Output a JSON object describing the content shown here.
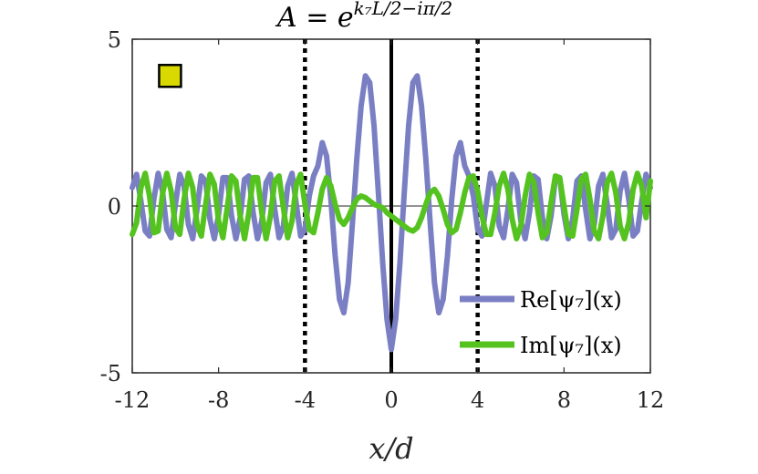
{
  "chart_data": {
    "type": "line",
    "title": {
      "lhs": "A = e",
      "exponent": "k₇L/2−iπ/2"
    },
    "xlabel": "x/d",
    "ylabel": "",
    "xlim": [
      -12,
      12
    ],
    "ylim": [
      -5,
      5
    ],
    "xticks": [
      "-12",
      "-8",
      "-4",
      "0",
      "4",
      "8",
      "12"
    ],
    "yticks": [
      "-5",
      "0",
      "5"
    ],
    "grid": false,
    "legend_position": "bottom-right",
    "vertical_lines": [
      {
        "x": -4,
        "style": "dotted",
        "color": "#000000"
      },
      {
        "x": 0,
        "style": "solid",
        "color": "#000000"
      },
      {
        "x": 4,
        "style": "dotted",
        "color": "#000000"
      }
    ],
    "marker": {
      "x": -10.25,
      "y": 3.9,
      "color": "#d9d900",
      "shape": "square"
    },
    "series": [
      {
        "name": "Re[ψ₇](x)",
        "color": "#7a7fc4",
        "points": [
          [
            -12,
            0.55
          ],
          [
            -11.8,
            0.95
          ],
          [
            -11.6,
            0.15
          ],
          [
            -11.4,
            -0.75
          ],
          [
            -11.2,
            -0.9
          ],
          [
            -11.0,
            0.2
          ],
          [
            -10.8,
            0.98
          ],
          [
            -10.6,
            0.45
          ],
          [
            -10.4,
            -0.7
          ],
          [
            -10.2,
            -0.95
          ],
          [
            -10.0,
            0.05
          ],
          [
            -9.8,
            0.95
          ],
          [
            -9.6,
            0.6
          ],
          [
            -9.4,
            -0.55
          ],
          [
            -9.2,
            -0.98
          ],
          [
            -9.0,
            -0.1
          ],
          [
            -8.8,
            0.9
          ],
          [
            -8.6,
            0.75
          ],
          [
            -8.4,
            -0.4
          ],
          [
            -8.2,
            -0.98
          ],
          [
            -8.0,
            -0.25
          ],
          [
            -7.8,
            0.85
          ],
          [
            -7.6,
            0.85
          ],
          [
            -7.4,
            -0.3
          ],
          [
            -7.2,
            -0.98
          ],
          [
            -7.0,
            -0.35
          ],
          [
            -6.8,
            0.8
          ],
          [
            -6.6,
            0.9
          ],
          [
            -6.4,
            -0.2
          ],
          [
            -6.2,
            -0.98
          ],
          [
            -6.0,
            -0.45
          ],
          [
            -5.8,
            0.7
          ],
          [
            -5.6,
            0.95
          ],
          [
            -5.4,
            -0.1
          ],
          [
            -5.2,
            -0.95
          ],
          [
            -5.0,
            -0.6
          ],
          [
            -4.8,
            0.6
          ],
          [
            -4.6,
            0.98
          ],
          [
            -4.4,
            0.05
          ],
          [
            -4.2,
            -0.9
          ],
          [
            -4.0,
            -0.7
          ],
          [
            -3.8,
            0.3
          ],
          [
            -3.6,
            0.9
          ],
          [
            -3.4,
            1.2
          ],
          [
            -3.2,
            1.9
          ],
          [
            -3.0,
            1.5
          ],
          [
            -2.8,
            0.2
          ],
          [
            -2.6,
            -1.5
          ],
          [
            -2.4,
            -2.8
          ],
          [
            -2.2,
            -3.2
          ],
          [
            -2.0,
            -2.3
          ],
          [
            -1.8,
            -0.5
          ],
          [
            -1.6,
            1.4
          ],
          [
            -1.4,
            3.0
          ],
          [
            -1.2,
            3.9
          ],
          [
            -1.0,
            3.7
          ],
          [
            -0.8,
            2.4
          ],
          [
            -0.6,
            0.4
          ],
          [
            -0.4,
            -1.7
          ],
          [
            -0.2,
            -3.4
          ],
          [
            0.0,
            -4.3
          ],
          [
            0.2,
            -3.4
          ],
          [
            0.4,
            -1.7
          ],
          [
            0.6,
            0.4
          ],
          [
            0.8,
            2.4
          ],
          [
            1.0,
            3.7
          ],
          [
            1.2,
            3.9
          ],
          [
            1.4,
            3.0
          ],
          [
            1.6,
            1.4
          ],
          [
            1.8,
            -0.5
          ],
          [
            2.0,
            -2.3
          ],
          [
            2.2,
            -3.2
          ],
          [
            2.4,
            -2.8
          ],
          [
            2.6,
            -1.5
          ],
          [
            2.8,
            0.2
          ],
          [
            3.0,
            1.5
          ],
          [
            3.2,
            1.9
          ],
          [
            3.4,
            1.2
          ],
          [
            3.6,
            0.9
          ],
          [
            3.8,
            0.3
          ],
          [
            4.0,
            -0.7
          ],
          [
            4.2,
            -0.9
          ],
          [
            4.4,
            0.05
          ],
          [
            4.6,
            0.98
          ],
          [
            4.8,
            0.6
          ],
          [
            5.0,
            -0.6
          ],
          [
            5.2,
            -0.95
          ],
          [
            5.4,
            -0.1
          ],
          [
            5.6,
            0.95
          ],
          [
            5.8,
            0.7
          ],
          [
            6.0,
            -0.45
          ],
          [
            6.2,
            -0.98
          ],
          [
            6.4,
            -0.2
          ],
          [
            6.6,
            0.9
          ],
          [
            6.8,
            0.8
          ],
          [
            7.0,
            -0.35
          ],
          [
            7.2,
            -0.98
          ],
          [
            7.4,
            -0.3
          ],
          [
            7.6,
            0.85
          ],
          [
            7.8,
            0.85
          ],
          [
            8.0,
            -0.25
          ],
          [
            8.2,
            -0.98
          ],
          [
            8.4,
            -0.4
          ],
          [
            8.6,
            0.75
          ],
          [
            8.8,
            0.9
          ],
          [
            9.0,
            -0.1
          ],
          [
            9.2,
            -0.98
          ],
          [
            9.4,
            -0.55
          ],
          [
            9.6,
            0.6
          ],
          [
            9.8,
            0.95
          ],
          [
            10.0,
            0.05
          ],
          [
            10.2,
            -0.95
          ],
          [
            10.4,
            -0.7
          ],
          [
            10.6,
            0.45
          ],
          [
            10.8,
            0.98
          ],
          [
            11.0,
            0.2
          ],
          [
            11.2,
            -0.9
          ],
          [
            11.4,
            -0.75
          ],
          [
            11.6,
            0.15
          ],
          [
            11.8,
            0.95
          ],
          [
            12.0,
            0.55
          ]
        ]
      },
      {
        "name": "Im[ψ₇](x)",
        "color": "#55c31f",
        "points": [
          [
            -12,
            -0.85
          ],
          [
            -11.8,
            -0.5
          ],
          [
            -11.6,
            0.55
          ],
          [
            -11.4,
            0.98
          ],
          [
            -11.2,
            0.3
          ],
          [
            -11.0,
            -0.8
          ],
          [
            -10.8,
            -0.75
          ],
          [
            -10.6,
            0.35
          ],
          [
            -10.4,
            0.98
          ],
          [
            -10.2,
            0.45
          ],
          [
            -10.0,
            -0.65
          ],
          [
            -9.8,
            -0.85
          ],
          [
            -9.6,
            0.2
          ],
          [
            -9.4,
            0.98
          ],
          [
            -9.2,
            0.55
          ],
          [
            -9.0,
            -0.55
          ],
          [
            -8.8,
            -0.9
          ],
          [
            -8.6,
            0.05
          ],
          [
            -8.4,
            0.95
          ],
          [
            -8.2,
            0.65
          ],
          [
            -8.0,
            -0.45
          ],
          [
            -7.8,
            -0.95
          ],
          [
            -7.6,
            -0.05
          ],
          [
            -7.4,
            0.9
          ],
          [
            -7.2,
            0.75
          ],
          [
            -7.0,
            -0.3
          ],
          [
            -6.8,
            -0.98
          ],
          [
            -6.6,
            -0.2
          ],
          [
            -6.4,
            0.85
          ],
          [
            -6.2,
            0.85
          ],
          [
            -6.0,
            -0.2
          ],
          [
            -5.8,
            -0.98
          ],
          [
            -5.6,
            -0.3
          ],
          [
            -5.4,
            0.75
          ],
          [
            -5.2,
            0.9
          ],
          [
            -5.0,
            -0.05
          ],
          [
            -4.8,
            -0.95
          ],
          [
            -4.6,
            -0.45
          ],
          [
            -4.4,
            0.65
          ],
          [
            -4.2,
            0.95
          ],
          [
            -4.0,
            0.05
          ],
          [
            -3.8,
            -0.7
          ],
          [
            -3.6,
            -0.8
          ],
          [
            -3.4,
            -0.2
          ],
          [
            -3.2,
            0.5
          ],
          [
            -3.0,
            0.85
          ],
          [
            -2.8,
            0.6
          ],
          [
            -2.6,
            0.05
          ],
          [
            -2.4,
            -0.4
          ],
          [
            -2.2,
            -0.55
          ],
          [
            -2.0,
            -0.35
          ],
          [
            -1.8,
            -0.05
          ],
          [
            -1.6,
            0.2
          ],
          [
            -1.4,
            0.3
          ],
          [
            -1.2,
            0.25
          ],
          [
            -1.0,
            0.15
          ],
          [
            -0.8,
            0.05
          ],
          [
            -0.6,
            0.0
          ],
          [
            -0.4,
            -0.05
          ],
          [
            -0.2,
            -0.2
          ],
          [
            0.0,
            -0.3
          ],
          [
            0.2,
            -0.4
          ],
          [
            0.4,
            -0.5
          ],
          [
            0.6,
            -0.6
          ],
          [
            0.8,
            -0.7
          ],
          [
            1.0,
            -0.75
          ],
          [
            1.2,
            -0.65
          ],
          [
            1.4,
            -0.35
          ],
          [
            1.6,
            0.05
          ],
          [
            1.8,
            0.4
          ],
          [
            2.0,
            0.5
          ],
          [
            2.2,
            0.3
          ],
          [
            2.4,
            -0.1
          ],
          [
            2.6,
            -0.55
          ],
          [
            2.8,
            -0.8
          ],
          [
            3.0,
            -0.7
          ],
          [
            3.2,
            -0.2
          ],
          [
            3.4,
            0.4
          ],
          [
            3.6,
            0.85
          ],
          [
            3.8,
            0.9
          ],
          [
            4.0,
            0.45
          ],
          [
            4.2,
            -0.3
          ],
          [
            4.4,
            -0.85
          ],
          [
            4.6,
            -0.85
          ],
          [
            4.8,
            -0.2
          ],
          [
            5.0,
            0.6
          ],
          [
            5.2,
            0.98
          ],
          [
            5.4,
            0.5
          ],
          [
            5.6,
            -0.4
          ],
          [
            5.8,
            -0.98
          ],
          [
            6.0,
            -0.6
          ],
          [
            6.2,
            0.3
          ],
          [
            6.4,
            0.95
          ],
          [
            6.6,
            0.7
          ],
          [
            6.8,
            -0.2
          ],
          [
            7.0,
            -0.95
          ],
          [
            7.2,
            -0.8
          ],
          [
            7.4,
            0.1
          ],
          [
            7.6,
            0.9
          ],
          [
            7.8,
            0.85
          ],
          [
            8.0,
            0.0
          ],
          [
            8.2,
            -0.85
          ],
          [
            8.4,
            -0.9
          ],
          [
            8.6,
            -0.1
          ],
          [
            8.8,
            0.8
          ],
          [
            9.0,
            0.95
          ],
          [
            9.2,
            0.2
          ],
          [
            9.4,
            -0.75
          ],
          [
            9.6,
            -0.98
          ],
          [
            9.8,
            -0.3
          ],
          [
            10.0,
            0.7
          ],
          [
            10.2,
            0.98
          ],
          [
            10.4,
            0.4
          ],
          [
            10.6,
            -0.6
          ],
          [
            10.8,
            -0.98
          ],
          [
            11.0,
            -0.5
          ],
          [
            11.2,
            0.5
          ],
          [
            11.4,
            0.98
          ],
          [
            11.6,
            0.6
          ],
          [
            11.8,
            -0.35
          ],
          [
            12.0,
            0.75
          ]
        ]
      }
    ]
  }
}
